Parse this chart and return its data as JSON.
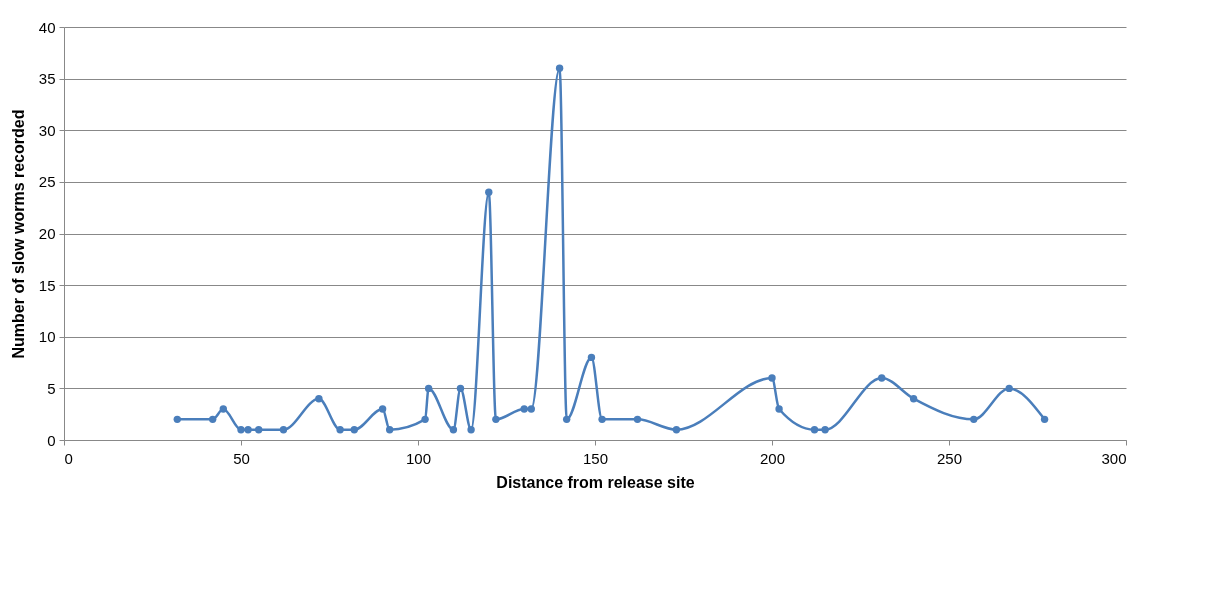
{
  "chart_data": {
    "type": "line",
    "xlabel": "Distance from release site",
    "ylabel": "Number of slow worms recorded",
    "x": [
      32,
      42,
      45,
      50,
      52,
      55,
      62,
      72,
      78,
      82,
      90,
      92,
      102,
      103,
      110,
      112,
      115,
      120,
      122,
      130,
      132,
      140,
      142,
      149,
      152,
      162,
      173,
      200,
      202,
      212,
      215,
      231,
      240,
      257,
      267,
      277
    ],
    "series": [
      {
        "color": "#4a7ebb",
        "values": [
          2,
          2,
          3,
          1,
          1,
          1,
          1,
          4,
          1,
          1,
          3,
          1,
          2,
          5,
          1,
          5,
          1,
          24,
          2,
          3,
          3,
          36,
          2,
          8,
          2,
          2,
          1,
          6,
          3,
          1,
          1,
          6,
          4,
          2,
          5,
          2
        ]
      }
    ],
    "xlim": [
      0,
      300
    ],
    "xticks": [
      0,
      50,
      100,
      150,
      200,
      250,
      300
    ],
    "ylim": [
      0,
      40
    ],
    "yticks": [
      0,
      5,
      10,
      15,
      20,
      25,
      30,
      35,
      40
    ],
    "grid": "y",
    "marker": "circle",
    "line_style": "solid"
  }
}
